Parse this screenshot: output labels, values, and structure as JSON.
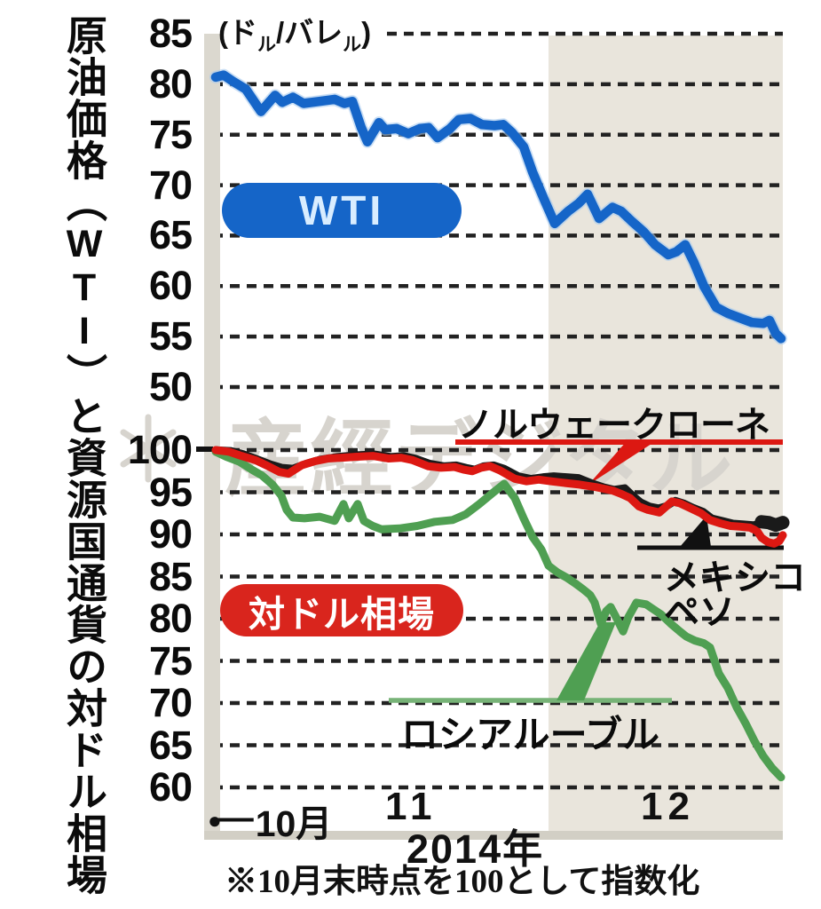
{
  "title_vertical": {
    "pre": "原油価格",
    "open": "（",
    "latin": "WTI",
    "close": "）",
    "post": "と資源国通貨の対ドル相場"
  },
  "unit_label": {
    "open": "(",
    "big1": "ド",
    "small1": "ル",
    "slash": "/",
    "big2": "バレ",
    "small2": "ル",
    "close": ")"
  },
  "watermark": {
    "text": "産經デジタル",
    "logo": "sankei-flower-mark"
  },
  "badges": {
    "wti": "WTI",
    "usd": "対ドル相場"
  },
  "line_labels": {
    "krone": "ノルウェークローネ",
    "peso_line1": "メキシコ",
    "peso_line2": "ペソ",
    "ruble": "ロシアルーブル"
  },
  "x_axis": {
    "start_dot": "●",
    "start_dash": "―",
    "start_month": "10月",
    "tick_nov": "11",
    "tick_dec": "12",
    "year": "2014年"
  },
  "footnote": "※10月末時点を100として指数化",
  "colors": {
    "wti_blue": "#1565c8",
    "wti_halo": "#a6c9ee",
    "wti_text": "#d9edff",
    "krone_red": "#dc1812",
    "peso_black": "#1a1a1a",
    "ruble_green": "#4f9f52",
    "leader_green": "#77b377",
    "badge_red": "#d9251d",
    "shaded_band": "#e9e5dc",
    "axis_band": "#dbd8cf",
    "baseline": "#d2cfc5",
    "grid": "#222222",
    "watermark": "#d7d4ce"
  },
  "chart_data": [
    {
      "type": "line",
      "name": "wti-crude-price",
      "title": "原油価格（WTI）",
      "unit": "ドル/バレル",
      "ylim": [
        50,
        85
      ],
      "yticks": [
        85,
        80,
        75,
        70,
        65,
        60,
        55,
        50
      ],
      "x_months": [
        "10月末",
        "11",
        "12"
      ],
      "highlight_band": "12月",
      "series": [
        {
          "name": "WTI",
          "points": [
            [
              243,
              80.7
            ],
            [
              252,
              80.9
            ],
            [
              262,
              80.3
            ],
            [
              277,
              79.5
            ],
            [
              294,
              77.3
            ],
            [
              310,
              78.9
            ],
            [
              318,
              78.2
            ],
            [
              330,
              78.7
            ],
            [
              342,
              78.1
            ],
            [
              360,
              78.3
            ],
            [
              377,
              78.5
            ],
            [
              388,
              78.1
            ],
            [
              397,
              78.3
            ],
            [
              407,
              75.7
            ],
            [
              414,
              74.3
            ],
            [
              427,
              76.2
            ],
            [
              434,
              75.5
            ],
            [
              447,
              75.6
            ],
            [
              460,
              75.1
            ],
            [
              473,
              75.6
            ],
            [
              483,
              75.7
            ],
            [
              493,
              74.7
            ],
            [
              507,
              75.6
            ],
            [
              517,
              76.5
            ],
            [
              530,
              76.6
            ],
            [
              543,
              76.0
            ],
            [
              557,
              75.9
            ],
            [
              567,
              76.0
            ],
            [
              577,
              75.2
            ],
            [
              590,
              73.8
            ],
            [
              600,
              71.3
            ],
            [
              612,
              68.8
            ],
            [
              625,
              66.2
            ],
            [
              640,
              67.4
            ],
            [
              652,
              68.2
            ],
            [
              662,
              69.1
            ],
            [
              675,
              66.7
            ],
            [
              690,
              67.8
            ],
            [
              700,
              67.4
            ],
            [
              712,
              66.4
            ],
            [
              725,
              65.4
            ],
            [
              738,
              64.1
            ],
            [
              753,
              63.1
            ],
            [
              762,
              63.4
            ],
            [
              772,
              64.1
            ],
            [
              782,
              62.3
            ],
            [
              793,
              60.0
            ],
            [
              807,
              57.9
            ],
            [
              820,
              57.3
            ],
            [
              835,
              56.8
            ],
            [
              847,
              56.4
            ],
            [
              860,
              56.3
            ],
            [
              867,
              56.6
            ],
            [
              874,
              55.3
            ],
            [
              880,
              54.8
            ]
          ]
        }
      ]
    },
    {
      "type": "line",
      "name": "currency-vs-dollar-index",
      "title": "資源国通貨の対ドル相場",
      "index_base": "10月末=100",
      "ylim": [
        60,
        100
      ],
      "yticks": [
        100,
        95,
        90,
        85,
        80,
        75,
        70,
        65,
        60
      ],
      "x_months": [
        "10月末",
        "11",
        "12"
      ],
      "highlight_band": "12月",
      "series": [
        {
          "name": "ロシアルーブル",
          "points": [
            [
              243,
              99.8
            ],
            [
              255,
              99.2
            ],
            [
              270,
              98.6
            ],
            [
              285,
              97.6
            ],
            [
              295,
              97.0
            ],
            [
              307,
              95.9
            ],
            [
              317,
              94.6
            ],
            [
              323,
              92.9
            ],
            [
              330,
              92.0
            ],
            [
              343,
              91.9
            ],
            [
              360,
              92.1
            ],
            [
              377,
              91.6
            ],
            [
              387,
              93.6
            ],
            [
              393,
              91.9
            ],
            [
              403,
              93.6
            ],
            [
              410,
              91.6
            ],
            [
              420,
              91.0
            ],
            [
              430,
              90.6
            ],
            [
              450,
              90.7
            ],
            [
              470,
              91.0
            ],
            [
              490,
              91.5
            ],
            [
              510,
              91.7
            ],
            [
              525,
              92.4
            ],
            [
              540,
              93.6
            ],
            [
              555,
              94.9
            ],
            [
              568,
              96.0
            ],
            [
              580,
              94.3
            ],
            [
              590,
              91.9
            ],
            [
              600,
              89.7
            ],
            [
              610,
              88.2
            ],
            [
              618,
              86.3
            ],
            [
              628,
              85.5
            ],
            [
              638,
              84.9
            ],
            [
              648,
              84.2
            ],
            [
              657,
              83.5
            ],
            [
              665,
              82.8
            ],
            [
              670,
              81.9
            ],
            [
              677,
              79.4
            ],
            [
              683,
              80.9
            ],
            [
              688,
              81.4
            ],
            [
              695,
              80.0
            ],
            [
              702,
              78.5
            ],
            [
              708,
              80.2
            ],
            [
              717,
              81.9
            ],
            [
              728,
              81.7
            ],
            [
              735,
              81.2
            ],
            [
              745,
              80.5
            ],
            [
              757,
              79.3
            ],
            [
              766,
              78.5
            ],
            [
              773,
              77.9
            ],
            [
              783,
              77.4
            ],
            [
              793,
              77.1
            ],
            [
              800,
              76.6
            ],
            [
              810,
              73.5
            ],
            [
              820,
              71.8
            ],
            [
              830,
              69.5
            ],
            [
              840,
              67.6
            ],
            [
              850,
              65.5
            ],
            [
              860,
              63.7
            ],
            [
              870,
              62.3
            ],
            [
              880,
              61.2
            ]
          ]
        },
        {
          "name": "メキシコペソ",
          "points": [
            [
              243,
              100.0
            ],
            [
              260,
              99.9
            ],
            [
              275,
              99.5
            ],
            [
              290,
              98.9
            ],
            [
              305,
              98.3
            ],
            [
              318,
              97.9
            ],
            [
              330,
              97.8
            ],
            [
              345,
              98.4
            ],
            [
              362,
              98.9
            ],
            [
              380,
              99.2
            ],
            [
              400,
              99.4
            ],
            [
              422,
              99.5
            ],
            [
              440,
              99.2
            ],
            [
              455,
              99.3
            ],
            [
              468,
              99.0
            ],
            [
              484,
              98.4
            ],
            [
              500,
              98.1
            ],
            [
              514,
              98.2
            ],
            [
              525,
              97.9
            ],
            [
              535,
              97.7
            ],
            [
              545,
              98.1
            ],
            [
              556,
              98.2
            ],
            [
              568,
              97.8
            ],
            [
              584,
              96.9
            ],
            [
              598,
              96.6
            ],
            [
              612,
              96.8
            ],
            [
              624,
              96.9
            ],
            [
              638,
              96.8
            ],
            [
              652,
              96.7
            ],
            [
              666,
              96.1
            ],
            [
              680,
              95.6
            ],
            [
              692,
              95.3
            ],
            [
              704,
              95.5
            ],
            [
              714,
              94.5
            ],
            [
              722,
              93.8
            ],
            [
              732,
              93.3
            ],
            [
              742,
              93.1
            ],
            [
              752,
              93.4
            ],
            [
              761,
              94.0
            ],
            [
              770,
              93.7
            ],
            [
              780,
              93.2
            ],
            [
              792,
              92.7
            ],
            [
              802,
              91.9
            ],
            [
              814,
              91.6
            ],
            [
              826,
              91.3
            ],
            [
              838,
              91.2
            ],
            [
              850,
              91.1
            ],
            [
              858,
              91.5
            ],
            [
              866,
              91.4
            ],
            [
              874,
              91.1
            ],
            [
              882,
              91.4
            ]
          ]
        },
        {
          "name": "ノルウェークローネ",
          "points": [
            [
              243,
              100.0
            ],
            [
              258,
              99.8
            ],
            [
              272,
              99.3
            ],
            [
              288,
              98.8
            ],
            [
              302,
              98.1
            ],
            [
              315,
              97.4
            ],
            [
              325,
              97.2
            ],
            [
              340,
              98.2
            ],
            [
              355,
              98.7
            ],
            [
              370,
              99.0
            ],
            [
              385,
              99.1
            ],
            [
              400,
              99.2
            ],
            [
              420,
              99.3
            ],
            [
              438,
              99.0
            ],
            [
              452,
              99.1
            ],
            [
              465,
              98.8
            ],
            [
              482,
              98.1
            ],
            [
              497,
              97.9
            ],
            [
              512,
              98.0
            ],
            [
              522,
              97.7
            ],
            [
              532,
              97.5
            ],
            [
              542,
              97.9
            ],
            [
              552,
              98.1
            ],
            [
              563,
              97.6
            ],
            [
              580,
              96.6
            ],
            [
              593,
              96.3
            ],
            [
              607,
              96.5
            ],
            [
              620,
              96.3
            ],
            [
              637,
              96.1
            ],
            [
              653,
              95.9
            ],
            [
              672,
              95.6
            ],
            [
              690,
              95.2
            ],
            [
              700,
              94.8
            ],
            [
              710,
              94.3
            ],
            [
              720,
              93.3
            ],
            [
              730,
              92.9
            ],
            [
              743,
              92.6
            ],
            [
              757,
              93.9
            ],
            [
              766,
              93.7
            ],
            [
              778,
              93.1
            ],
            [
              790,
              92.5
            ],
            [
              800,
              91.7
            ],
            [
              812,
              91.3
            ],
            [
              823,
              91.0
            ],
            [
              835,
              90.9
            ],
            [
              845,
              90.8
            ],
            [
              853,
              90.4
            ],
            [
              858,
              89.6
            ],
            [
              865,
              89.1
            ],
            [
              872,
              88.9
            ],
            [
              878,
              89.2
            ],
            [
              882,
              89.9
            ]
          ]
        }
      ]
    }
  ]
}
